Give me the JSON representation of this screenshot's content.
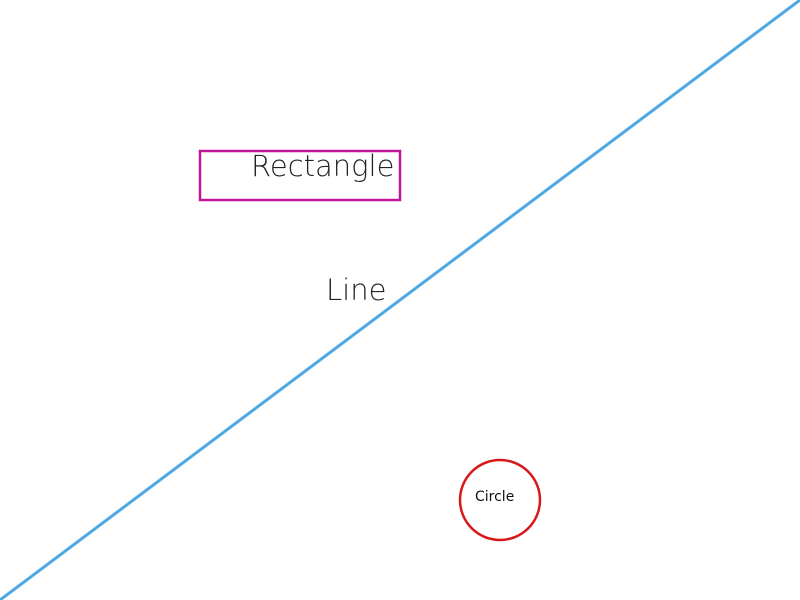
{
  "shapes": {
    "rectangle": {
      "label": "Rectangle",
      "stroke_color": "#c0169a"
    },
    "line": {
      "label": "Line",
      "stroke_color": "#4fa6e6"
    },
    "circle": {
      "label": "Circle",
      "stroke_color": "#d81818"
    }
  }
}
